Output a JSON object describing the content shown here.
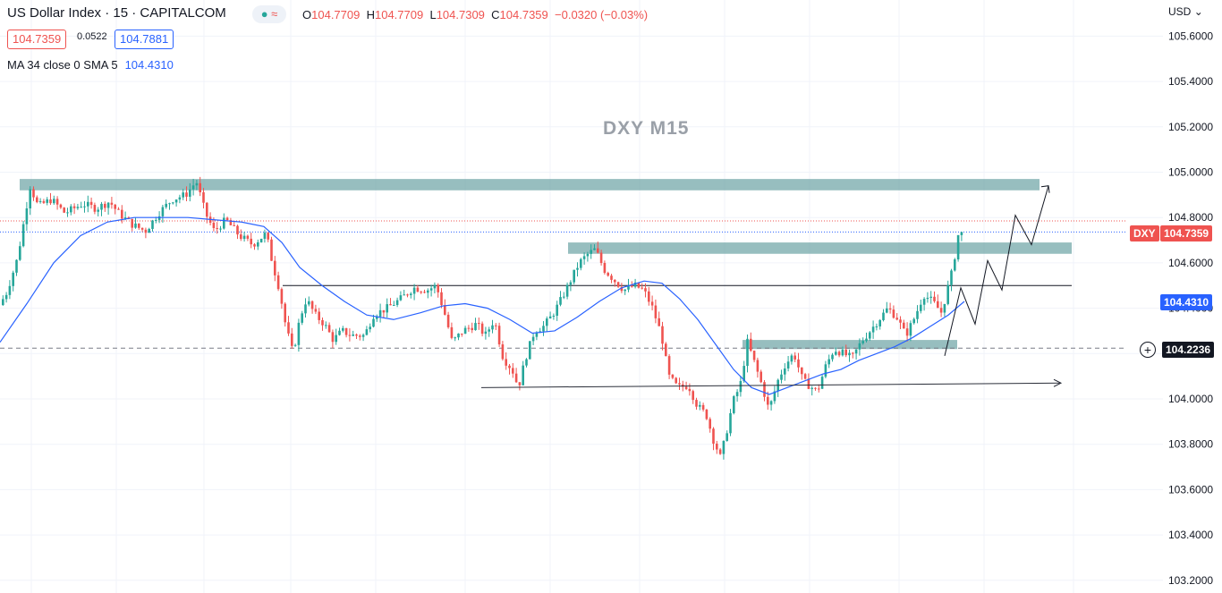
{
  "header": {
    "symbol_line": "US Dollar Index · 15 · CAPITALCOM",
    "ohlc": {
      "o_label": "O",
      "o": "104.7709",
      "h_label": "H",
      "h": "104.7709",
      "l_label": "L",
      "l": "104.7309",
      "c_label": "C",
      "c": "104.7359",
      "change": "−0.0320 (−0.03%)"
    },
    "bid": "104.7359",
    "spread": "0.0522",
    "ask": "104.7881",
    "indicator_label": "MA 34 close 0 SMA 5",
    "indicator_value": "104.4310",
    "currency": "USD"
  },
  "watermark": "DXY M15",
  "axis": {
    "tag_symbol": "DXY",
    "tag_price": "104.7359",
    "tag_ma": "104.4310",
    "tag_crosshair": "104.2236"
  },
  "colors": {
    "up": "#26a69a",
    "down": "#ef5350",
    "ma": "#2962ff",
    "zone": "#6fa5a6",
    "grid": "#f0f3fa"
  },
  "chart_data": {
    "type": "candlestick",
    "instrument": "US Dollar Index",
    "timeframe": "15",
    "y_ticks": [
      "105.6000",
      "105.4000",
      "105.2000",
      "105.0000",
      "104.8000",
      "104.6000",
      "104.4000",
      "104.2000",
      "104.0000",
      "103.8000",
      "103.6000",
      "103.4000",
      "103.2000"
    ],
    "ylim": [
      103.18,
      105.66
    ],
    "price_path": [
      [
        0,
        104.4
      ],
      [
        10,
        104.47
      ],
      [
        22,
        104.62
      ],
      [
        30,
        104.8
      ],
      [
        36,
        104.94
      ],
      [
        45,
        104.85
      ],
      [
        60,
        104.88
      ],
      [
        75,
        104.82
      ],
      [
        95,
        104.86
      ],
      [
        110,
        104.84
      ],
      [
        125,
        104.87
      ],
      [
        135,
        104.82
      ],
      [
        150,
        104.77
      ],
      [
        165,
        104.74
      ],
      [
        180,
        104.82
      ],
      [
        195,
        104.88
      ],
      [
        210,
        104.9
      ],
      [
        222,
        104.96
      ],
      [
        232,
        104.82
      ],
      [
        242,
        104.74
      ],
      [
        255,
        104.79
      ],
      [
        270,
        104.72
      ],
      [
        285,
        104.68
      ],
      [
        300,
        104.73
      ],
      [
        307,
        104.6
      ],
      [
        315,
        104.48
      ],
      [
        322,
        104.32
      ],
      [
        330,
        104.2
      ],
      [
        338,
        104.36
      ],
      [
        345,
        104.44
      ],
      [
        355,
        104.37
      ],
      [
        365,
        104.33
      ],
      [
        375,
        104.26
      ],
      [
        385,
        104.3
      ],
      [
        395,
        104.28
      ],
      [
        410,
        104.28
      ],
      [
        420,
        104.37
      ],
      [
        435,
        104.4
      ],
      [
        450,
        104.44
      ],
      [
        465,
        104.49
      ],
      [
        480,
        104.48
      ],
      [
        490,
        104.5
      ],
      [
        500,
        104.37
      ],
      [
        508,
        104.25
      ],
      [
        520,
        104.3
      ],
      [
        535,
        104.33
      ],
      [
        545,
        104.28
      ],
      [
        555,
        104.35
      ],
      [
        565,
        104.18
      ],
      [
        575,
        104.13
      ],
      [
        582,
        104.05
      ],
      [
        590,
        104.18
      ],
      [
        600,
        104.3
      ],
      [
        610,
        104.32
      ],
      [
        620,
        104.37
      ],
      [
        630,
        104.44
      ],
      [
        640,
        104.52
      ],
      [
        650,
        104.6
      ],
      [
        660,
        104.64
      ],
      [
        668,
        104.66
      ],
      [
        678,
        104.57
      ],
      [
        690,
        104.52
      ],
      [
        700,
        104.48
      ],
      [
        712,
        104.5
      ],
      [
        722,
        104.48
      ],
      [
        732,
        104.4
      ],
      [
        742,
        104.28
      ],
      [
        750,
        104.1
      ],
      [
        760,
        104.05
      ],
      [
        772,
        104.06
      ],
      [
        782,
        103.97
      ],
      [
        792,
        103.93
      ],
      [
        800,
        103.82
      ],
      [
        808,
        103.74
      ],
      [
        815,
        103.86
      ],
      [
        822,
        103.99
      ],
      [
        830,
        104.06
      ],
      [
        838,
        104.25
      ],
      [
        845,
        104.17
      ],
      [
        855,
        104.05
      ],
      [
        862,
        103.95
      ],
      [
        872,
        104.08
      ],
      [
        880,
        104.15
      ],
      [
        890,
        104.2
      ],
      [
        900,
        104.08
      ],
      [
        910,
        104.05
      ],
      [
        916,
        104.03
      ],
      [
        925,
        104.14
      ],
      [
        935,
        104.22
      ],
      [
        945,
        104.2
      ],
      [
        955,
        104.18
      ],
      [
        965,
        104.25
      ],
      [
        975,
        104.3
      ],
      [
        985,
        104.35
      ],
      [
        995,
        104.4
      ],
      [
        1005,
        104.36
      ],
      [
        1015,
        104.28
      ],
      [
        1025,
        104.36
      ],
      [
        1035,
        104.46
      ],
      [
        1045,
        104.43
      ],
      [
        1055,
        104.38
      ],
      [
        1062,
        104.49
      ],
      [
        1068,
        104.58
      ],
      [
        1073,
        104.72
      ],
      [
        1078,
        104.736
      ]
    ],
    "sma_label": "MA 34 close 0 SMA 5",
    "sma_last": 104.431,
    "sma_path": [
      [
        0,
        104.25
      ],
      [
        30,
        104.42
      ],
      [
        60,
        104.6
      ],
      [
        90,
        104.72
      ],
      [
        120,
        104.78
      ],
      [
        150,
        104.8
      ],
      [
        180,
        104.8
      ],
      [
        210,
        104.8
      ],
      [
        240,
        104.79
      ],
      [
        270,
        104.78
      ],
      [
        295,
        104.76
      ],
      [
        315,
        104.69
      ],
      [
        335,
        104.58
      ],
      [
        360,
        104.5
      ],
      [
        385,
        104.43
      ],
      [
        410,
        104.37
      ],
      [
        440,
        104.35
      ],
      [
        470,
        104.38
      ],
      [
        495,
        104.41
      ],
      [
        520,
        104.42
      ],
      [
        545,
        104.4
      ],
      [
        570,
        104.35
      ],
      [
        595,
        104.29
      ],
      [
        620,
        104.3
      ],
      [
        645,
        104.36
      ],
      [
        670,
        104.43
      ],
      [
        695,
        104.49
      ],
      [
        720,
        104.52
      ],
      [
        740,
        104.51
      ],
      [
        760,
        104.44
      ],
      [
        780,
        104.35
      ],
      [
        800,
        104.24
      ],
      [
        820,
        104.13
      ],
      [
        840,
        104.05
      ],
      [
        860,
        104.02
      ],
      [
        880,
        104.05
      ],
      [
        900,
        104.08
      ],
      [
        920,
        104.11
      ],
      [
        940,
        104.13
      ],
      [
        960,
        104.17
      ],
      [
        980,
        104.2
      ],
      [
        1000,
        104.23
      ],
      [
        1020,
        104.27
      ],
      [
        1040,
        104.32
      ],
      [
        1060,
        104.37
      ],
      [
        1078,
        104.43
      ]
    ],
    "zones": [
      {
        "from_x": 22,
        "to_x": 1162,
        "top": 104.97,
        "bottom": 104.92
      },
      {
        "from_x": 635,
        "to_x": 1198,
        "top": 104.69,
        "bottom": 104.64
      },
      {
        "from_x": 830,
        "to_x": 1070,
        "top": 104.26,
        "bottom": 104.22
      }
    ],
    "horizontal_lines": [
      {
        "price": 104.5,
        "from_x": 316,
        "to_x": 1198,
        "style": "solid"
      },
      {
        "price": 104.224,
        "from_x": 0,
        "to_x": 1260,
        "style": "dashed"
      },
      {
        "price": 104.785,
        "from_x": 0,
        "to_x": 1260,
        "style": "dotted-red"
      },
      {
        "price": 104.736,
        "from_x": 0,
        "to_x": 1260,
        "style": "dotted-blue"
      }
    ],
    "trend_arrow": {
      "from": [
        538,
        104.05
      ],
      "to": [
        1186,
        104.07
      ]
    },
    "projection": [
      [
        1056,
        104.19
      ],
      [
        1074,
        104.49
      ],
      [
        1090,
        104.33
      ],
      [
        1104,
        104.61
      ],
      [
        1120,
        104.48
      ],
      [
        1135,
        104.81
      ],
      [
        1153,
        104.68
      ],
      [
        1172,
        104.94
      ]
    ]
  }
}
